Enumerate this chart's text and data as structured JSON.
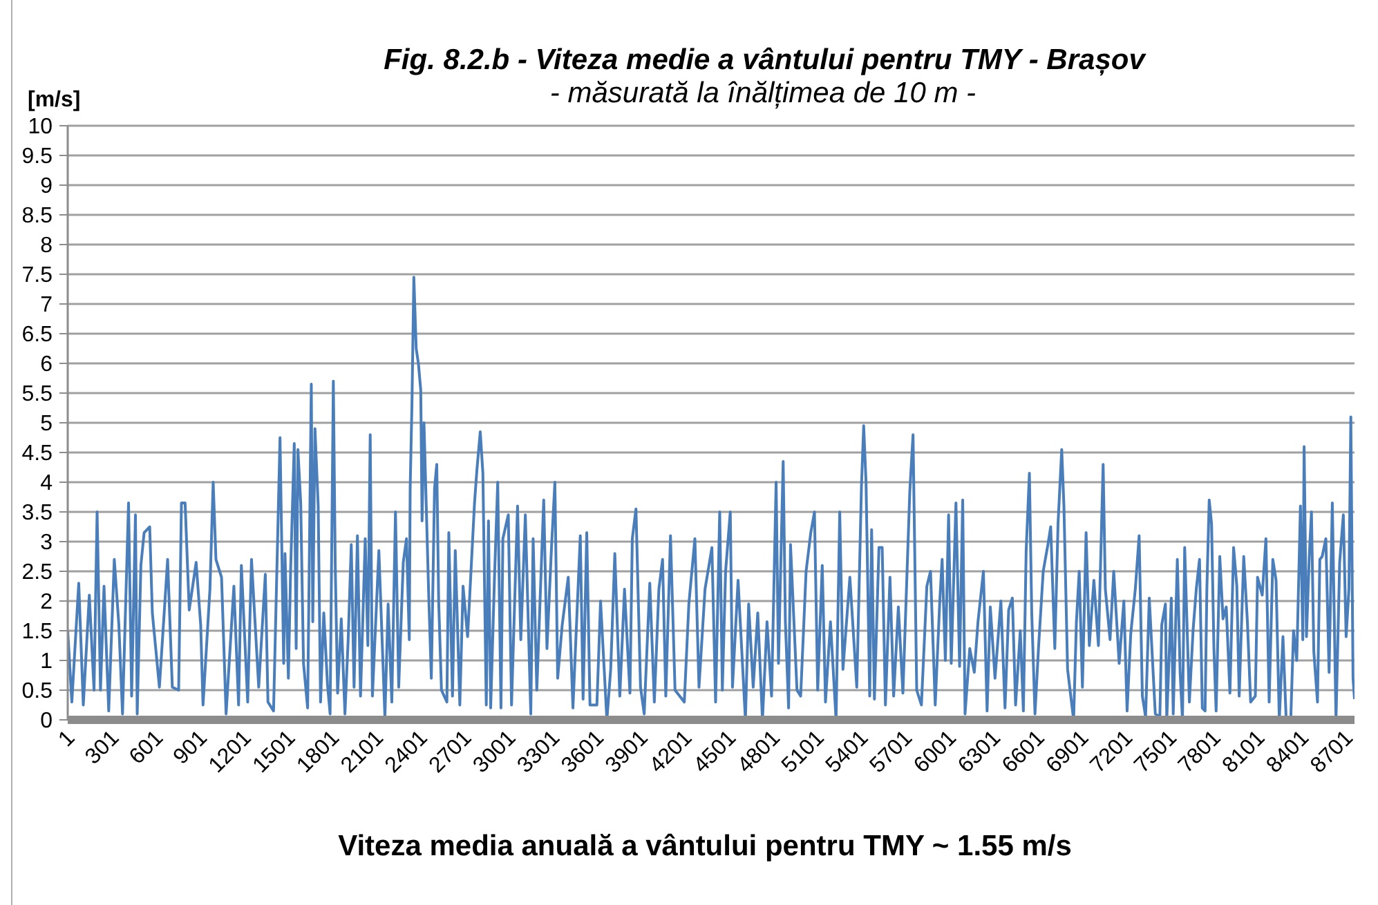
{
  "chart_data": {
    "type": "line",
    "title": "Fig. 8.2.b - Viteza medie a vântului pentru TMY - Brașov",
    "subtitle": "- măsurată la înălțimea de 10 m -",
    "ylabel": "[m/s]",
    "annotations": [
      "Viteza media anuală a vântului pentru TMY ~ 1.55 m/s"
    ],
    "x": [
      1,
      29,
      76,
      107,
      148,
      180,
      201,
      224,
      248,
      280,
      318,
      349,
      374,
      415,
      436,
      462,
      474,
      499,
      521,
      559,
      577,
      625,
      681,
      713,
      756,
      775,
      800,
      828,
      875,
      906,
      922,
      969,
      991,
      1010,
      1048,
      1079,
      1132,
      1164,
      1183,
      1226,
      1252,
      1301,
      1346,
      1364,
      1402,
      1446,
      1471,
      1480,
      1503,
      1518,
      1543,
      1556,
      1568,
      1587,
      1606,
      1634,
      1659,
      1669,
      1684,
      1706,
      1722,
      1744,
      1769,
      1787,
      1809,
      1822,
      1838,
      1863,
      1888,
      1910,
      1931,
      1950,
      1973,
      1994,
      2026,
      2044,
      2060,
      2075,
      2119,
      2160,
      2182,
      2207,
      2232,
      2254,
      2285,
      2307,
      2326,
      2332,
      2344,
      2357,
      2373,
      2388,
      2404,
      2413,
      2426,
      2457,
      2476,
      2498,
      2513,
      2526,
      2545,
      2582,
      2595,
      2620,
      2639,
      2670,
      2692,
      2723,
      2770,
      2786,
      2809,
      2827,
      2850,
      2865,
      2880,
      2906,
      2928,
      2950,
      2963,
      3000,
      3022,
      3063,
      3085,
      3116,
      3153,
      3169,
      3194,
      3241,
      3263,
      3294,
      3317,
      3336,
      3367,
      3408,
      3440,
      3490,
      3509,
      3534,
      3556,
      3603,
      3628,
      3671,
      3697,
      3725,
      3759,
      3791,
      3828,
      3844,
      3869,
      3900,
      3925,
      3963,
      3994,
      4025,
      4050,
      4072,
      4104,
      4135,
      4198,
      4229,
      4270,
      4298,
      4339,
      4386,
      4411,
      4439,
      4457,
      4479,
      4511,
      4526,
      4564,
      4614,
      4636,
      4667,
      4698,
      4730,
      4761,
      4792,
      4823,
      4839,
      4871,
      4886,
      4908,
      4921,
      4965,
      4990,
      5027,
      5059,
      5084,
      5106,
      5137,
      5159,
      5193,
      5231,
      5256,
      5278,
      5325,
      5372,
      5404,
      5419,
      5435,
      5460,
      5473,
      5492,
      5523,
      5545,
      5567,
      5598,
      5623,
      5655,
      5686,
      5733,
      5755,
      5780,
      5812,
      5849,
      5874,
      5906,
      5937,
      5953,
      5975,
      5997,
      6015,
      6047,
      6072,
      6093,
      6109,
      6141,
      6172,
      6197,
      6234,
      6259,
      6281,
      6313,
      6353,
      6381,
      6406,
      6431,
      6453,
      6485,
      6506,
      6525,
      6547,
      6563,
      6585,
      6610,
      6641,
      6673,
      6692,
      6720,
      6742,
      6767,
      6782,
      6807,
      6848,
      6867,
      6886,
      6908,
      6933,
      6955,
      6986,
      7017,
      7049,
      7064,
      7096,
      7121,
      7158,
      7190,
      7212,
      7237,
      7268,
      7294,
      7316,
      7338,
      7363,
      7404,
      7435,
      7448,
      7473,
      7482,
      7513,
      7526,
      7554,
      7573,
      7589,
      7604,
      7636,
      7661,
      7683,
      7705,
      7724,
      7743,
      7755,
      7771,
      7787,
      7803,
      7818,
      7843,
      7865,
      7887,
      7912,
      7937,
      7959,
      7975,
      8006,
      8031,
      8053,
      8085,
      8100,
      8132,
      8157,
      8179,
      8204,
      8226,
      8248,
      8273,
      8295,
      8326,
      8345,
      8367,
      8392,
      8408,
      8417,
      8433,
      8452,
      8467,
      8483,
      8508,
      8524,
      8540,
      8565,
      8587,
      8609,
      8634,
      8659,
      8684,
      8703,
      8722,
      8735,
      8750,
      8760
    ],
    "values": [
      1.5,
      0.3,
      2.3,
      0.25,
      2.1,
      0.5,
      3.5,
      0.5,
      2.25,
      0.15,
      2.7,
      1.6,
      0.1,
      3.65,
      0.4,
      3.45,
      0.1,
      2.6,
      3.15,
      3.25,
      1.8,
      0.55,
      2.7,
      0.55,
      0.5,
      3.65,
      3.65,
      1.85,
      2.65,
      1.6,
      0.25,
      2.2,
      4.0,
      2.7,
      2.4,
      0.1,
      2.25,
      0.25,
      2.6,
      0.3,
      2.7,
      0.55,
      2.45,
      0.3,
      0.15,
      4.75,
      0.95,
      2.8,
      0.7,
      2.5,
      4.65,
      1.2,
      4.55,
      3.65,
      0.95,
      0.2,
      5.65,
      1.65,
      4.9,
      3.6,
      0.3,
      1.8,
      0.6,
      0.1,
      5.7,
      2.6,
      0.45,
      1.7,
      0.1,
      1.35,
      2.95,
      0.55,
      3.1,
      0.4,
      3.05,
      1.25,
      4.8,
      0.4,
      2.85,
      0.05,
      1.95,
      0.3,
      3.5,
      0.55,
      2.65,
      3.05,
      1.35,
      3.9,
      5.3,
      7.45,
      6.25,
      6.0,
      5.55,
      3.35,
      5.0,
      2.2,
      0.7,
      3.9,
      4.3,
      2.0,
      0.5,
      0.3,
      3.15,
      0.4,
      2.85,
      0.25,
      2.25,
      1.4,
      3.65,
      4.2,
      4.85,
      4.15,
      0.25,
      3.35,
      0.2,
      2.4,
      4.0,
      0.2,
      3.05,
      3.45,
      0.25,
      3.6,
      1.35,
      3.45,
      0.1,
      3.05,
      0.5,
      3.7,
      1.2,
      2.9,
      4.0,
      0.7,
      1.6,
      2.4,
      0.2,
      3.1,
      0.35,
      3.15,
      0.25,
      0.25,
      2.0,
      0.0,
      0.85,
      2.8,
      0.4,
      2.2,
      0.45,
      3.05,
      3.55,
      0.55,
      0.1,
      2.3,
      0.3,
      2.2,
      2.7,
      0.4,
      3.1,
      0.5,
      0.3,
      1.95,
      3.05,
      0.55,
      2.2,
      2.9,
      0.3,
      3.5,
      0.5,
      2.5,
      3.5,
      0.55,
      2.35,
      0.0,
      1.95,
      0.55,
      1.8,
      0.0,
      1.65,
      0.4,
      4.0,
      0.95,
      4.35,
      1.65,
      0.2,
      2.95,
      0.5,
      0.4,
      2.5,
      3.15,
      3.5,
      0.5,
      2.6,
      0.3,
      1.65,
      0.0,
      3.5,
      0.85,
      2.4,
      0.55,
      3.95,
      4.95,
      4.0,
      0.4,
      3.2,
      0.35,
      2.9,
      2.9,
      0.25,
      2.4,
      0.4,
      1.9,
      0.45,
      3.85,
      4.8,
      0.5,
      0.25,
      2.25,
      2.5,
      0.25,
      2.0,
      2.7,
      1.0,
      3.45,
      0.95,
      3.65,
      0.9,
      3.7,
      0.1,
      1.2,
      0.8,
      1.65,
      2.5,
      0.15,
      1.9,
      0.7,
      2.0,
      0.2,
      1.85,
      2.05,
      0.25,
      1.5,
      0.15,
      2.85,
      4.15,
      1.8,
      0.1,
      1.25,
      2.5,
      2.95,
      3.25,
      1.2,
      3.3,
      4.55,
      3.6,
      0.85,
      0.0,
      1.65,
      2.5,
      0.55,
      3.15,
      1.25,
      2.35,
      1.25,
      4.3,
      2.2,
      1.35,
      2.5,
      0.95,
      2.0,
      0.15,
      1.45,
      2.2,
      3.1,
      0.4,
      0.05,
      2.05,
      0.1,
      0.05,
      1.6,
      1.95,
      0.0,
      2.05,
      0.1,
      2.7,
      0.8,
      0.0,
      2.9,
      0.3,
      1.5,
      2.2,
      2.7,
      0.2,
      0.15,
      2.2,
      3.7,
      3.3,
      1.2,
      0.15,
      2.75,
      1.7,
      1.9,
      0.45,
      2.9,
      2.25,
      0.4,
      2.75,
      1.65,
      0.3,
      0.4,
      2.4,
      2.1,
      3.05,
      0.3,
      2.7,
      2.35,
      0.0,
      1.4,
      0.0,
      0.0,
      1.5,
      1.0,
      3.6,
      1.35,
      4.6,
      1.4,
      2.75,
      3.5,
      1.15,
      0.3,
      2.7,
      2.75,
      3.05,
      0.8,
      3.65,
      0.0,
      2.65,
      3.45,
      1.4,
      2.2,
      5.1,
      0.7,
      0.35
    ],
    "color": "#4a7ebb",
    "xlim": [
      1,
      8760
    ],
    "xticks": [
      1,
      301,
      601,
      901,
      1201,
      1501,
      1801,
      2101,
      2401,
      2701,
      3001,
      3301,
      3601,
      3901,
      4201,
      4501,
      4801,
      5101,
      5401,
      5701,
      6001,
      6301,
      6601,
      6901,
      7201,
      7501,
      7801,
      8101,
      8401,
      8701
    ],
    "ylim": [
      0,
      10
    ],
    "yticks": [
      0,
      0.5,
      1,
      1.5,
      2,
      2.5,
      3,
      3.5,
      4,
      4.5,
      5,
      5.5,
      6,
      6.5,
      7,
      7.5,
      8,
      8.5,
      9,
      9.5,
      10
    ],
    "grid": "y"
  }
}
